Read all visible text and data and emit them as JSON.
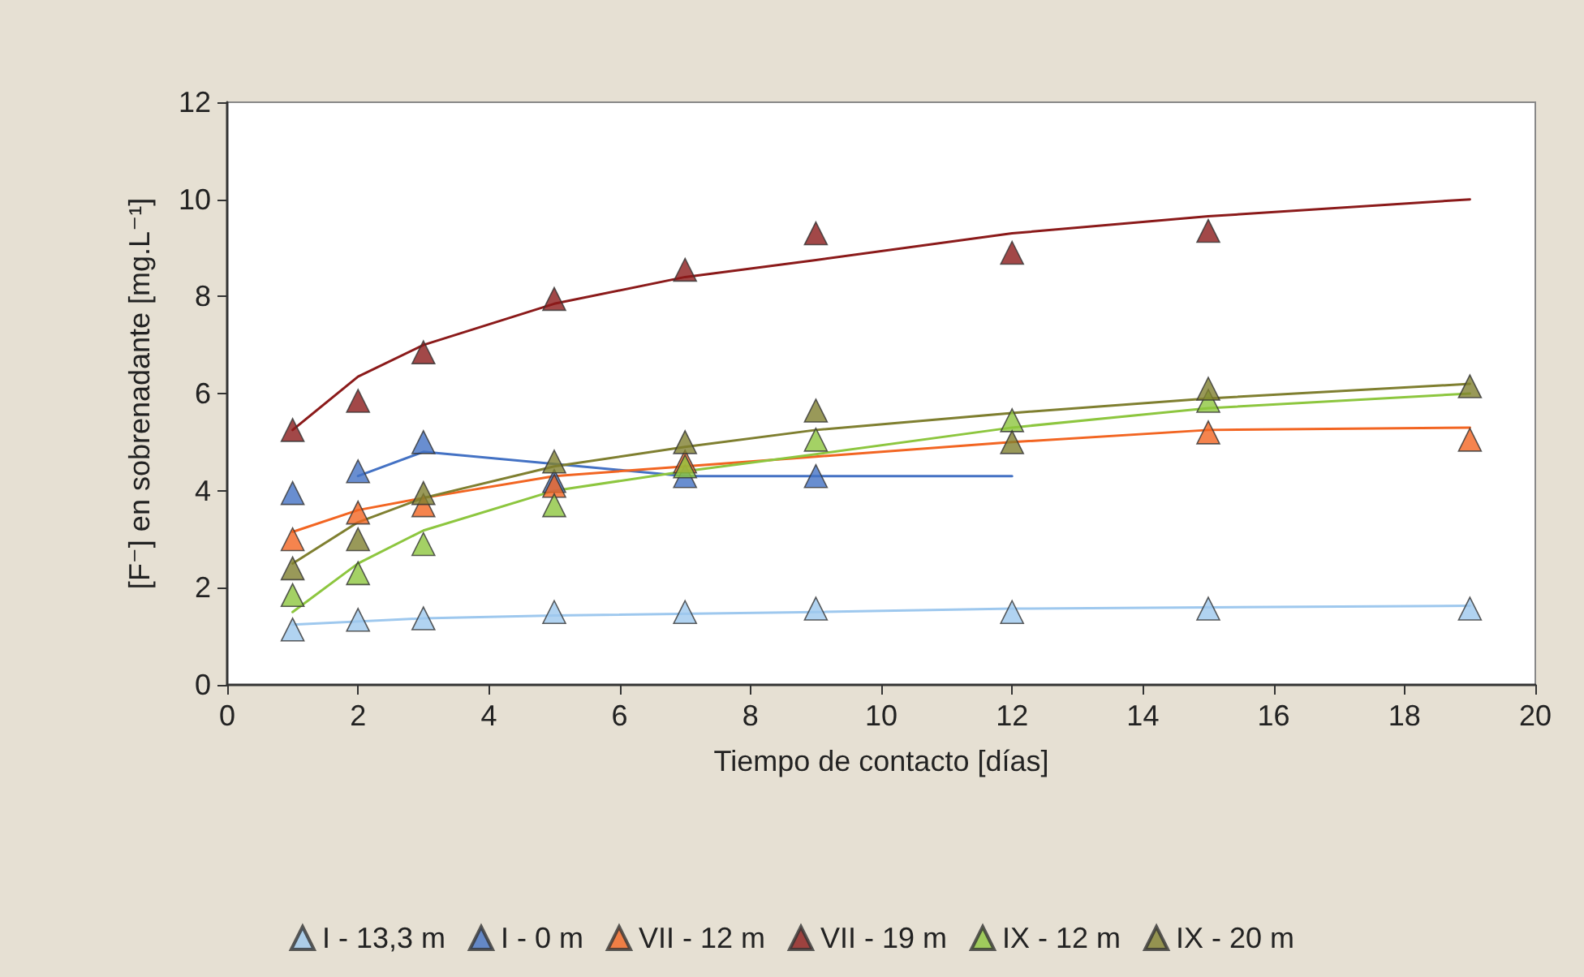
{
  "chart_data": {
    "type": "scatter",
    "xlabel": "Tiempo de contacto [días]",
    "ylabel": "[F⁻] en sobrenadante [mg.L⁻¹]",
    "xlim": [
      0,
      20
    ],
    "xticks": [
      0,
      2,
      4,
      6,
      8,
      10,
      12,
      14,
      16,
      18,
      20
    ],
    "ylim": [
      0,
      12
    ],
    "yticks": [
      0,
      2,
      4,
      6,
      8,
      10,
      12
    ],
    "grid": false,
    "legend": "bottom",
    "marker": "triangle",
    "series": [
      {
        "name": "I - 13,3 m",
        "color": "#9ec8ee",
        "x": [
          1,
          2,
          3,
          5,
          7,
          9,
          12,
          15,
          19
        ],
        "values": [
          1.14,
          1.34,
          1.37,
          1.5,
          1.5,
          1.57,
          1.5,
          1.57,
          1.57
        ]
      },
      {
        "name": "I - 0 m",
        "color": "#4472c4",
        "x": [
          1,
          2,
          3,
          5,
          7,
          9
        ],
        "values": [
          3.95,
          4.4,
          5.0,
          4.2,
          4.3,
          4.3
        ]
      },
      {
        "name": "VII - 12 m",
        "color": "#f26522",
        "x": [
          1,
          2,
          3,
          5,
          7,
          12,
          15,
          19
        ],
        "values": [
          3.0,
          3.55,
          3.7,
          4.1,
          4.6,
          null,
          5.2,
          5.05
        ]
      },
      {
        "name": "VII - 19 m",
        "color": "#8b1a1a",
        "x": [
          1,
          2,
          3,
          5,
          7,
          9,
          12,
          15
        ],
        "values": [
          5.25,
          5.85,
          6.85,
          7.95,
          8.55,
          9.3,
          8.9,
          9.35
        ]
      },
      {
        "name": "IX - 12 m",
        "color": "#8dc63f",
        "x": [
          1,
          2,
          3,
          5,
          7,
          9,
          12,
          15
        ],
        "values": [
          1.85,
          2.3,
          2.9,
          3.7,
          4.5,
          5.05,
          5.45,
          5.85
        ]
      },
      {
        "name": "IX - 20 m",
        "color": "#7f7f30",
        "x": [
          1,
          2,
          3,
          5,
          7,
          9,
          12,
          15,
          19
        ],
        "values": [
          2.4,
          3.0,
          3.95,
          4.6,
          5.0,
          5.65,
          5.0,
          6.1,
          6.15
        ]
      },
      {
        "type": "line",
        "marker": "none",
        "color": "#9ec8ee",
        "x": [
          1,
          3,
          5,
          9,
          12,
          19
        ],
        "values": [
          1.24,
          1.37,
          1.43,
          1.5,
          1.57,
          1.63
        ]
      },
      {
        "type": "line",
        "marker": "none",
        "color": "#4472c4",
        "x": [
          2,
          3,
          7,
          9,
          12
        ],
        "values": [
          4.3,
          4.8,
          4.3,
          4.3,
          4.3
        ]
      },
      {
        "type": "line",
        "marker": "none",
        "color": "#f26522",
        "x": [
          1,
          2,
          3,
          5,
          7,
          9,
          12,
          15,
          19
        ],
        "values": [
          3.15,
          3.6,
          3.85,
          4.3,
          4.5,
          4.7,
          5.0,
          5.25,
          5.3
        ]
      },
      {
        "type": "line",
        "marker": "none",
        "color": "#8b1a1a",
        "x": [
          1,
          2,
          3,
          5,
          7,
          9,
          12,
          15,
          19
        ],
        "values": [
          5.25,
          6.35,
          7.0,
          7.85,
          8.4,
          8.75,
          9.3,
          9.65,
          10.0
        ]
      },
      {
        "type": "line",
        "marker": "none",
        "color": "#8dc63f",
        "x": [
          1,
          2,
          3,
          5,
          7,
          9,
          12,
          15,
          19
        ],
        "values": [
          1.5,
          2.5,
          3.18,
          4.0,
          4.4,
          4.75,
          5.3,
          5.7,
          6.0
        ]
      },
      {
        "type": "line",
        "marker": "none",
        "color": "#7f7f30",
        "x": [
          1,
          2,
          3,
          5,
          7,
          9,
          12,
          15,
          19
        ],
        "values": [
          2.5,
          3.35,
          3.85,
          4.5,
          4.9,
          5.25,
          5.6,
          5.9,
          6.2
        ]
      }
    ]
  }
}
